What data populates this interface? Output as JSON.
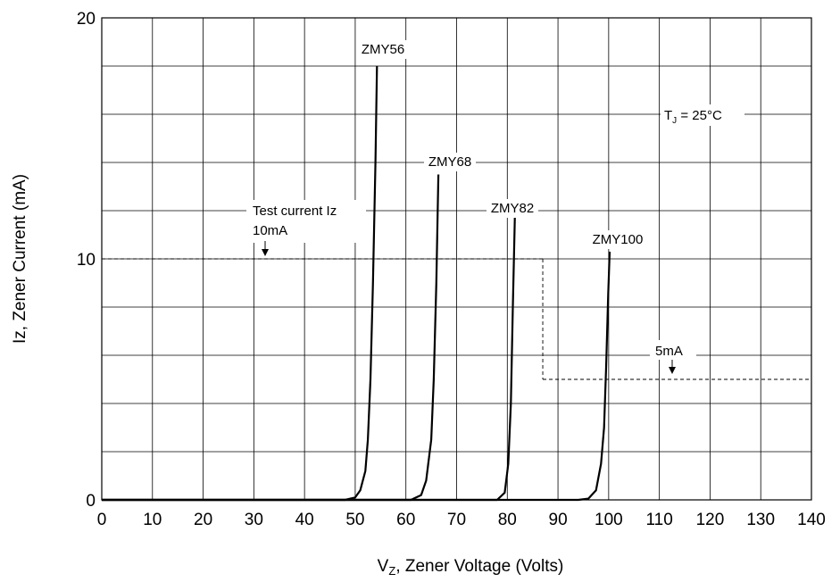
{
  "chart_data": {
    "type": "line",
    "title": "",
    "xlabel_main": "V",
    "xlabel_sub": "Z",
    "xlabel_rest": ", Zener Voltage (Volts)",
    "ylabel": "Iz, Zener Current (mA)",
    "xlim": [
      0,
      140
    ],
    "ylim": [
      0,
      20
    ],
    "x_ticks": [
      "0",
      "10",
      "20",
      "30",
      "40",
      "50",
      "60",
      "70",
      "80",
      "90",
      "100",
      "110",
      "120",
      "130",
      "140"
    ],
    "y_ticks": [
      "0",
      "10",
      "20"
    ],
    "grid": true,
    "series": [
      {
        "name": "ZMY56",
        "x": [
          0,
          48,
          50,
          51,
          52,
          52.5,
          53,
          53.5,
          54,
          54.3
        ],
        "y": [
          0,
          0,
          0.1,
          0.4,
          1.2,
          2.5,
          5,
          9,
          14,
          18
        ]
      },
      {
        "name": "ZMY68",
        "x": [
          0,
          61,
          63,
          64,
          65,
          65.5,
          66,
          66.4
        ],
        "y": [
          0,
          0,
          0.2,
          0.8,
          2.5,
          5,
          9,
          13.5
        ]
      },
      {
        "name": "ZMY82",
        "x": [
          0,
          78,
          79.5,
          80.2,
          80.7,
          81.1,
          81.5
        ],
        "y": [
          0,
          0,
          0.3,
          1.5,
          4,
          8,
          11.8
        ]
      },
      {
        "name": "ZMY100",
        "x": [
          0,
          94,
          96,
          97.5,
          98.5,
          99.1,
          99.5,
          99.9,
          100.2
        ],
        "y": [
          0,
          0,
          0.05,
          0.4,
          1.5,
          3,
          5.5,
          8.5,
          10.3
        ]
      }
    ],
    "reference_lines": [
      {
        "label_line1": "Test current Iz",
        "label_line2": "10mA",
        "y": 10,
        "x_from": 0,
        "x_to": 87
      },
      {
        "label": "5mA",
        "y": 5,
        "x_from": 87,
        "x_to": 140
      }
    ],
    "annotation": {
      "main": "T",
      "sub": "J",
      "rest": " = 25°C"
    }
  }
}
